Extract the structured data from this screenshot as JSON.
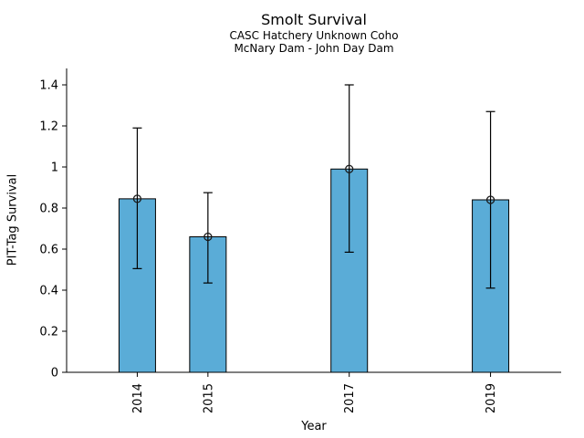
{
  "chart_data": {
    "type": "bar",
    "title": "Smolt Survival",
    "subtitle1": "CASC Hatchery Unknown Coho",
    "subtitle2": "McNary Dam - John Day Dam",
    "xlabel": "Year",
    "ylabel": "PIT-Tag Survival",
    "categories": [
      "2014",
      "2015",
      "2017",
      "2019"
    ],
    "x": [
      2014,
      2015,
      2017,
      2019
    ],
    "values": [
      0.845,
      0.66,
      0.99,
      0.84
    ],
    "error_low": [
      0.505,
      0.435,
      0.585,
      0.41
    ],
    "error_high": [
      1.19,
      0.875,
      1.4,
      1.27
    ],
    "xlim": [
      2013,
      2020
    ],
    "ylim": [
      0,
      1.48
    ],
    "yticks": [
      0,
      0.2,
      0.4,
      0.6,
      0.8,
      1,
      1.2,
      1.4
    ],
    "ytick_labels": [
      "0",
      "0.2",
      "0.4",
      "0.6",
      "0.8",
      "1",
      "1.2",
      "1.4"
    ],
    "grid": false,
    "legend": "none",
    "bar_color": "#5aacd7",
    "bar_edge_color": "#000000",
    "error_color": "#000000",
    "marker": "open-circle",
    "text_color": "#000000"
  }
}
